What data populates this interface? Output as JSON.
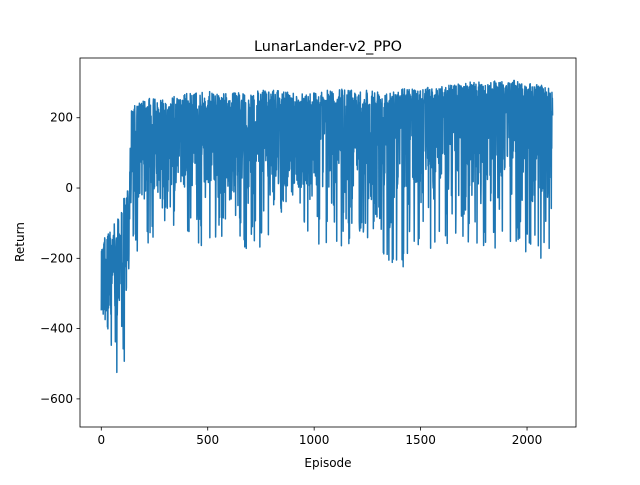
{
  "chart_data": {
    "type": "line",
    "title": "LunarLander-v2_PPO",
    "xlabel": "Episode",
    "ylabel": "Return",
    "xlim": [
      -100,
      2230
    ],
    "ylim": [
      -680,
      370
    ],
    "xticks": [
      0,
      500,
      1000,
      1500,
      2000
    ],
    "yticks": [
      -600,
      -400,
      -200,
      0,
      200
    ],
    "grid": false,
    "legend": "none",
    "series": [
      {
        "color": "#1f77b4",
        "episodes": 2120,
        "x": [
          0,
          10,
          20,
          30,
          40,
          50,
          60,
          70,
          80,
          90,
          100,
          110,
          120,
          130,
          140,
          150,
          175,
          200,
          250,
          300,
          400,
          500,
          600,
          700,
          800,
          850,
          900,
          1000,
          1100,
          1200,
          1300,
          1400,
          1500,
          1600,
          1700,
          1800,
          1900,
          2000,
          2050,
          2100,
          2120
        ],
        "y_upper": [
          -110,
          -150,
          -110,
          -130,
          -90,
          -140,
          -100,
          -120,
          -80,
          -130,
          10,
          0,
          20,
          -50,
          225,
          230,
          245,
          250,
          260,
          255,
          270,
          275,
          270,
          275,
          280,
          275,
          275,
          275,
          280,
          285,
          280,
          285,
          285,
          290,
          300,
          305,
          310,
          300,
          295,
          290,
          285
        ],
        "y_lower": [
          -560,
          -420,
          -390,
          -520,
          -430,
          -500,
          -560,
          -630,
          -490,
          -450,
          -600,
          -470,
          -380,
          -300,
          -170,
          -200,
          -230,
          -180,
          -150,
          -100,
          -160,
          -180,
          -150,
          -200,
          -130,
          -70,
          -60,
          -160,
          -190,
          -140,
          -180,
          -230,
          -200,
          -190,
          -150,
          -190,
          -160,
          -190,
          -210,
          -220,
          -10
        ],
        "y_mid": [
          -300,
          -280,
          -260,
          -300,
          -260,
          -310,
          -320,
          -350,
          -280,
          -290,
          -250,
          -230,
          -180,
          -150,
          60,
          70,
          90,
          100,
          110,
          110,
          120,
          130,
          120,
          130,
          150,
          100,
          90,
          120,
          130,
          140,
          120,
          140,
          150,
          160,
          170,
          160,
          165,
          160,
          150,
          160,
          200
        ]
      }
    ]
  }
}
